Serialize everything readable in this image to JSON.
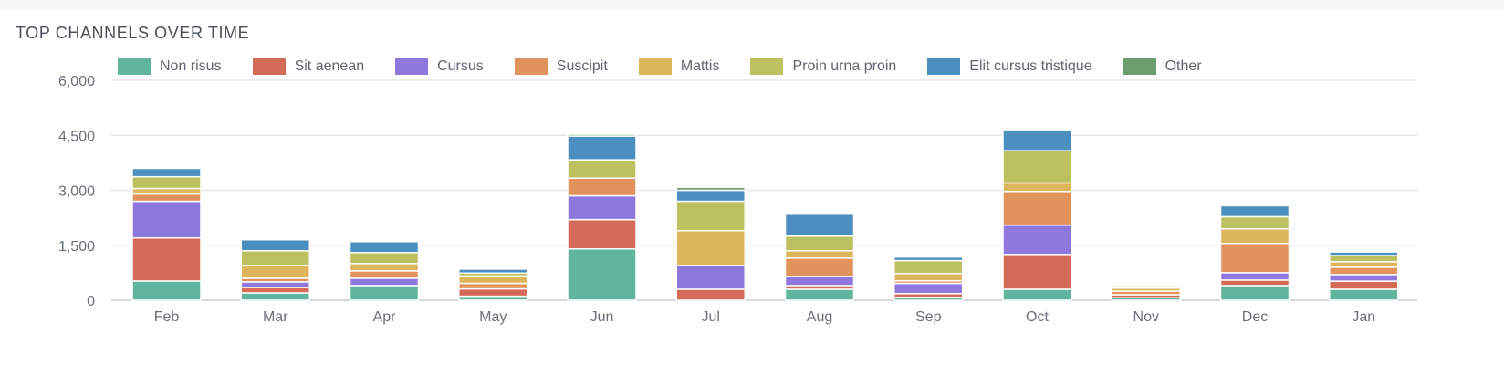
{
  "card": {
    "title": "TOP CHANNELS OVER TIME"
  },
  "chart_data": {
    "type": "bar",
    "stacked": true,
    "title": "TOP CHANNELS OVER TIME",
    "xlabel": "",
    "ylabel": "",
    "ylim": [
      0,
      6000
    ],
    "yticks": [
      0,
      1500,
      3000,
      4500,
      6000
    ],
    "ytick_labels": [
      "0",
      "1,500",
      "3,000",
      "4,500",
      "6,000"
    ],
    "grid": true,
    "legend_position": "top-left",
    "categories": [
      "Feb",
      "Mar",
      "Apr",
      "May",
      "Jun",
      "Jul",
      "Aug",
      "Sep",
      "Oct",
      "Nov",
      "Dec",
      "Jan"
    ],
    "series": [
      {
        "name": "Non risus",
        "color": "#5fb69c",
        "values": [
          525,
          200,
          400,
          110,
          1400,
          0,
          300,
          80,
          300,
          70,
          400,
          300
        ]
      },
      {
        "name": "Sit aenean",
        "color": "#d66a58",
        "values": [
          1175,
          150,
          0,
          200,
          800,
          300,
          100,
          100,
          950,
          80,
          150,
          220
        ]
      },
      {
        "name": "Cursus",
        "color": "#8f78dd",
        "values": [
          1000,
          150,
          200,
          0,
          650,
          650,
          250,
          280,
          800,
          0,
          200,
          180
        ]
      },
      {
        "name": "Suscipit",
        "color": "#e2935c",
        "values": [
          200,
          100,
          200,
          150,
          480,
          0,
          500,
          70,
          920,
          100,
          800,
          200
        ]
      },
      {
        "name": "Mattis",
        "color": "#ddb65c",
        "values": [
          150,
          350,
          200,
          200,
          0,
          950,
          200,
          200,
          230,
          80,
          400,
          150
        ]
      },
      {
        "name": "Proin urna proin",
        "color": "#bcc05e",
        "values": [
          320,
          400,
          300,
          80,
          500,
          800,
          400,
          350,
          880,
          70,
          330,
          170
        ]
      },
      {
        "name": "Elit cursus tristique",
        "color": "#4a8fc0",
        "values": [
          230,
          300,
          300,
          110,
          650,
          300,
          600,
          100,
          550,
          0,
          300,
          100
        ]
      },
      {
        "name": "Other",
        "color": "#6b9e6e",
        "values": [
          30,
          30,
          30,
          20,
          50,
          80,
          30,
          30,
          40,
          30,
          20,
          20
        ]
      }
    ]
  }
}
